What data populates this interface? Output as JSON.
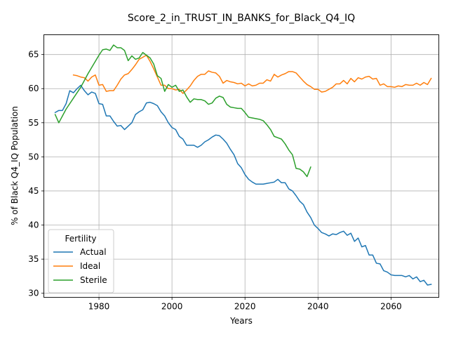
{
  "chart_data": {
    "type": "line",
    "title": "Score_2_in_TRUST_IN_BANKS_for_Black_Q4_IQ",
    "xlabel": "Years",
    "ylabel": "% of Black Q4_IQ Population",
    "xlim": [
      1964.9,
      2073.1
    ],
    "ylim": [
      29.4,
      67.9
    ],
    "xticks": [
      1980,
      2000,
      2020,
      2040,
      2060
    ],
    "yticks": [
      30,
      35,
      40,
      45,
      50,
      55,
      60,
      65
    ],
    "grid": true,
    "legend": {
      "title": "Fertility",
      "placement": "lower-left"
    },
    "series": [
      {
        "name": "Actual",
        "color": "#1f77b4",
        "points": [
          [
            1968,
            56.5
          ],
          [
            1969,
            56.8
          ],
          [
            1970,
            56.8
          ],
          [
            1971,
            57.8
          ],
          [
            1972,
            59.7
          ],
          [
            1973,
            59.4
          ],
          [
            1974,
            60.0
          ],
          [
            1975,
            60.5
          ],
          [
            1976,
            59.7
          ],
          [
            1977,
            59.1
          ],
          [
            1978,
            59.5
          ],
          [
            1979,
            59.3
          ],
          [
            1980,
            57.8
          ],
          [
            1981,
            57.7
          ],
          [
            1982,
            56.0
          ],
          [
            1983,
            56.0
          ],
          [
            1984,
            55.2
          ],
          [
            1985,
            54.5
          ],
          [
            1986,
            54.6
          ],
          [
            1987,
            54.0
          ],
          [
            1988,
            54.5
          ],
          [
            1989,
            55.0
          ],
          [
            1990,
            56.2
          ],
          [
            1991,
            56.6
          ],
          [
            1992,
            56.9
          ],
          [
            1993,
            57.9
          ],
          [
            1994,
            58.0
          ],
          [
            1995,
            57.8
          ],
          [
            1996,
            57.5
          ],
          [
            1997,
            56.6
          ],
          [
            1998,
            56.0
          ],
          [
            1999,
            55.0
          ],
          [
            2000,
            54.3
          ],
          [
            2001,
            54.0
          ],
          [
            2002,
            53.0
          ],
          [
            2003,
            52.6
          ],
          [
            2004,
            51.7
          ],
          [
            2005,
            51.7
          ],
          [
            2006,
            51.7
          ],
          [
            2007,
            51.4
          ],
          [
            2008,
            51.7
          ],
          [
            2009,
            52.2
          ],
          [
            2010,
            52.5
          ],
          [
            2011,
            52.9
          ],
          [
            2012,
            53.2
          ],
          [
            2013,
            53.1
          ],
          [
            2014,
            52.6
          ],
          [
            2015,
            52.0
          ],
          [
            2016,
            51.1
          ],
          [
            2017,
            50.3
          ],
          [
            2018,
            49.0
          ],
          [
            2019,
            48.4
          ],
          [
            2020,
            47.4
          ],
          [
            2021,
            46.7
          ],
          [
            2022,
            46.3
          ],
          [
            2023,
            46.0
          ],
          [
            2024,
            46.0
          ],
          [
            2025,
            46.0
          ],
          [
            2026,
            46.1
          ],
          [
            2027,
            46.2
          ],
          [
            2028,
            46.3
          ],
          [
            2029,
            46.7
          ],
          [
            2030,
            46.2
          ],
          [
            2031,
            46.2
          ],
          [
            2032,
            45.3
          ],
          [
            2033,
            45.0
          ],
          [
            2034,
            44.3
          ],
          [
            2035,
            43.5
          ],
          [
            2036,
            43.0
          ],
          [
            2037,
            41.9
          ],
          [
            2038,
            41.1
          ],
          [
            2039,
            40.0
          ],
          [
            2040,
            39.5
          ],
          [
            2041,
            38.9
          ],
          [
            2042,
            38.7
          ],
          [
            2043,
            38.4
          ],
          [
            2044,
            38.7
          ],
          [
            2045,
            38.6
          ],
          [
            2046,
            38.9
          ],
          [
            2047,
            39.1
          ],
          [
            2048,
            38.5
          ],
          [
            2049,
            38.8
          ],
          [
            2050,
            37.6
          ],
          [
            2051,
            38.1
          ],
          [
            2052,
            36.8
          ],
          [
            2053,
            37.0
          ],
          [
            2054,
            35.6
          ],
          [
            2055,
            35.6
          ],
          [
            2056,
            34.4
          ],
          [
            2057,
            34.3
          ],
          [
            2058,
            33.3
          ],
          [
            2059,
            33.1
          ],
          [
            2060,
            32.7
          ],
          [
            2061,
            32.6
          ],
          [
            2062,
            32.6
          ],
          [
            2063,
            32.6
          ],
          [
            2064,
            32.4
          ],
          [
            2065,
            32.6
          ],
          [
            2066,
            32.1
          ],
          [
            2067,
            32.4
          ],
          [
            2068,
            31.7
          ],
          [
            2069,
            31.9
          ],
          [
            2070,
            31.2
          ],
          [
            2071,
            31.3
          ]
        ]
      },
      {
        "name": "Ideal",
        "color": "#ff7f0e",
        "points": [
          [
            1973,
            62.0
          ],
          [
            1974,
            61.9
          ],
          [
            1975,
            61.7
          ],
          [
            1976,
            61.6
          ],
          [
            1977,
            61.1
          ],
          [
            1978,
            61.7
          ],
          [
            1979,
            62.0
          ],
          [
            1980,
            60.5
          ],
          [
            1981,
            60.6
          ],
          [
            1982,
            59.6
          ],
          [
            1983,
            59.7
          ],
          [
            1984,
            59.7
          ],
          [
            1985,
            60.5
          ],
          [
            1986,
            61.4
          ],
          [
            1987,
            62.0
          ],
          [
            1988,
            62.2
          ],
          [
            1989,
            62.8
          ],
          [
            1990,
            63.5
          ],
          [
            1991,
            64.3
          ],
          [
            1992,
            64.6
          ],
          [
            1993,
            64.9
          ],
          [
            1994,
            64.0
          ],
          [
            1995,
            62.9
          ],
          [
            1996,
            61.7
          ],
          [
            1997,
            60.5
          ],
          [
            1998,
            60.5
          ],
          [
            1999,
            60.0
          ],
          [
            2000,
            60.0
          ],
          [
            2001,
            59.8
          ],
          [
            2002,
            59.9
          ],
          [
            2003,
            59.3
          ],
          [
            2004,
            59.8
          ],
          [
            2005,
            60.4
          ],
          [
            2006,
            61.2
          ],
          [
            2007,
            61.8
          ],
          [
            2008,
            62.1
          ],
          [
            2009,
            62.1
          ],
          [
            2010,
            62.6
          ],
          [
            2011,
            62.4
          ],
          [
            2012,
            62.3
          ],
          [
            2013,
            61.8
          ],
          [
            2014,
            60.8
          ],
          [
            2015,
            61.2
          ],
          [
            2016,
            61.0
          ],
          [
            2017,
            60.9
          ],
          [
            2018,
            60.7
          ],
          [
            2019,
            60.8
          ],
          [
            2020,
            60.4
          ],
          [
            2021,
            60.7
          ],
          [
            2022,
            60.4
          ],
          [
            2023,
            60.5
          ],
          [
            2024,
            60.8
          ],
          [
            2025,
            60.8
          ],
          [
            2026,
            61.3
          ],
          [
            2027,
            61.1
          ],
          [
            2028,
            62.1
          ],
          [
            2029,
            61.7
          ],
          [
            2030,
            62.0
          ],
          [
            2031,
            62.2
          ],
          [
            2032,
            62.5
          ],
          [
            2033,
            62.5
          ],
          [
            2034,
            62.3
          ],
          [
            2035,
            61.7
          ],
          [
            2036,
            61.1
          ],
          [
            2037,
            60.6
          ],
          [
            2038,
            60.3
          ],
          [
            2039,
            59.9
          ],
          [
            2040,
            59.9
          ],
          [
            2041,
            59.5
          ],
          [
            2042,
            59.6
          ],
          [
            2043,
            59.9
          ],
          [
            2044,
            60.2
          ],
          [
            2045,
            60.7
          ],
          [
            2046,
            60.7
          ],
          [
            2047,
            61.2
          ],
          [
            2048,
            60.7
          ],
          [
            2049,
            61.5
          ],
          [
            2050,
            61.0
          ],
          [
            2051,
            61.6
          ],
          [
            2052,
            61.4
          ],
          [
            2053,
            61.7
          ],
          [
            2054,
            61.8
          ],
          [
            2055,
            61.4
          ],
          [
            2056,
            61.5
          ],
          [
            2057,
            60.5
          ],
          [
            2058,
            60.7
          ],
          [
            2059,
            60.3
          ],
          [
            2060,
            60.3
          ],
          [
            2061,
            60.2
          ],
          [
            2062,
            60.4
          ],
          [
            2063,
            60.3
          ],
          [
            2064,
            60.6
          ],
          [
            2065,
            60.5
          ],
          [
            2066,
            60.5
          ],
          [
            2067,
            60.8
          ],
          [
            2068,
            60.5
          ],
          [
            2069,
            60.9
          ],
          [
            2070,
            60.6
          ],
          [
            2071,
            61.5
          ]
        ]
      },
      {
        "name": "Sterile",
        "color": "#2ca02c",
        "points": [
          [
            1968,
            56.2
          ],
          [
            1969,
            55.0
          ],
          [
            1970,
            56.0
          ],
          [
            1971,
            57.0
          ],
          [
            1972,
            57.8
          ],
          [
            1973,
            58.6
          ],
          [
            1974,
            59.4
          ],
          [
            1975,
            60.2
          ],
          [
            1976,
            61.2
          ],
          [
            1977,
            62.2
          ],
          [
            1978,
            63.1
          ],
          [
            1979,
            64.0
          ],
          [
            1980,
            64.9
          ],
          [
            1981,
            65.7
          ],
          [
            1982,
            65.8
          ],
          [
            1983,
            65.6
          ],
          [
            1984,
            66.4
          ],
          [
            1985,
            66.0
          ],
          [
            1986,
            66.0
          ],
          [
            1987,
            65.6
          ],
          [
            1988,
            64.1
          ],
          [
            1989,
            64.8
          ],
          [
            1990,
            64.3
          ],
          [
            1991,
            64.5
          ],
          [
            1992,
            65.3
          ],
          [
            1993,
            64.9
          ],
          [
            1994,
            64.5
          ],
          [
            1995,
            63.6
          ],
          [
            1996,
            61.9
          ],
          [
            1997,
            61.5
          ],
          [
            1998,
            59.6
          ],
          [
            1999,
            60.6
          ],
          [
            2000,
            60.2
          ],
          [
            2001,
            60.5
          ],
          [
            2002,
            59.6
          ],
          [
            2003,
            59.8
          ],
          [
            2004,
            58.8
          ],
          [
            2005,
            58.0
          ],
          [
            2006,
            58.5
          ],
          [
            2007,
            58.4
          ],
          [
            2008,
            58.4
          ],
          [
            2009,
            58.2
          ],
          [
            2010,
            57.7
          ],
          [
            2011,
            57.9
          ],
          [
            2012,
            58.6
          ],
          [
            2013,
            58.9
          ],
          [
            2014,
            58.7
          ],
          [
            2015,
            57.7
          ],
          [
            2016,
            57.3
          ],
          [
            2017,
            57.2
          ],
          [
            2018,
            57.1
          ],
          [
            2019,
            57.1
          ],
          [
            2020,
            56.5
          ],
          [
            2021,
            55.8
          ],
          [
            2022,
            55.7
          ],
          [
            2023,
            55.6
          ],
          [
            2024,
            55.5
          ],
          [
            2025,
            55.3
          ],
          [
            2026,
            54.7
          ],
          [
            2027,
            54.0
          ],
          [
            2028,
            53.0
          ],
          [
            2029,
            52.8
          ],
          [
            2030,
            52.6
          ],
          [
            2031,
            51.9
          ],
          [
            2032,
            51.0
          ],
          [
            2033,
            50.3
          ],
          [
            2034,
            48.3
          ],
          [
            2035,
            48.2
          ],
          [
            2036,
            47.8
          ],
          [
            2037,
            47.1
          ],
          [
            2038,
            48.5
          ]
        ]
      }
    ]
  }
}
